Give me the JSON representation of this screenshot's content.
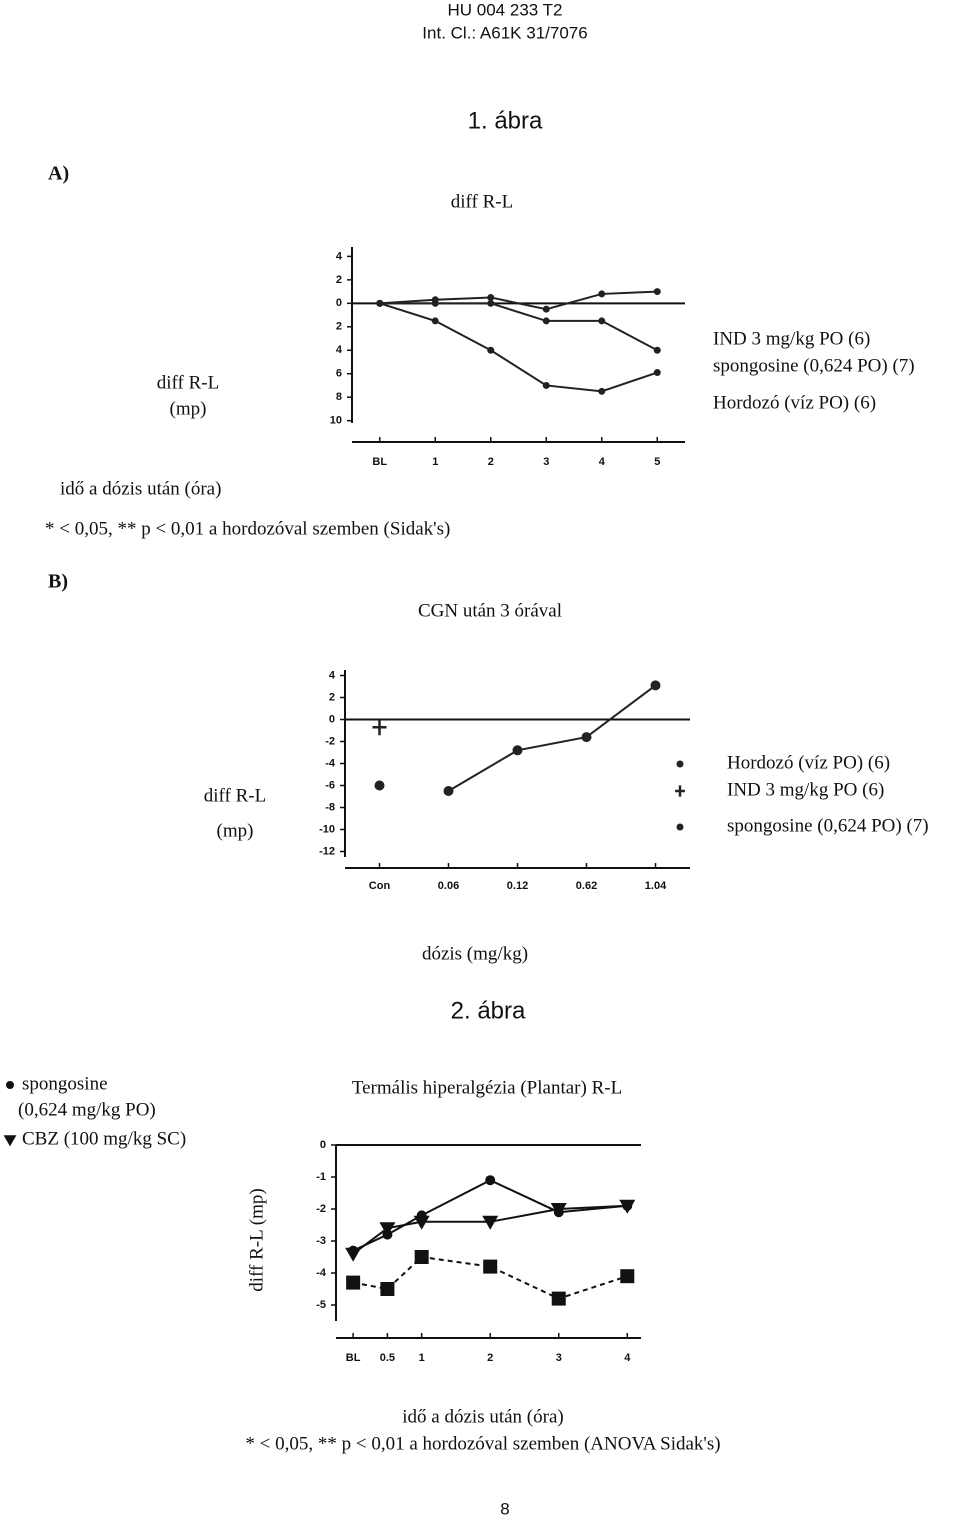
{
  "header": {
    "patent": "HU 004 233 T2",
    "class": "Int. Cl.: A61K 31/7076"
  },
  "page_number": "8",
  "chart_data": [
    {
      "type": "line",
      "figure": "1. ábra",
      "panel": "A)",
      "title": "diff R-L",
      "ylabel": [
        "diff R-L",
        "(mp)"
      ],
      "xlabel": "idő a dózis után (óra)",
      "note": "* < 0,05, ** p < 0,01 a hordozóval szemben (Sidak's)",
      "categories": [
        "BL",
        "1",
        "2",
        "3",
        "4",
        "5"
      ],
      "ylim": [
        -10.2,
        4.8
      ],
      "yticks": [
        4,
        2,
        0,
        {
          "value": -2,
          "label": "2"
        },
        {
          "value": -4,
          "label": "4"
        },
        {
          "value": -6,
          "label": "6"
        },
        {
          "value": -8,
          "label": "8"
        },
        {
          "value": -10,
          "label": "10"
        }
      ],
      "series": [
        {
          "name": "IND 3 mg/kg PO (6)",
          "color": "#222",
          "values": [
            0,
            -1.5,
            -4,
            -7,
            -7.5,
            -5.9
          ]
        },
        {
          "name": "spongosine (0,624 PO) (7)",
          "color": "#222",
          "values": [
            0,
            0,
            0,
            -1.5,
            -1.5,
            -4
          ]
        },
        {
          "name": "Hordozó (víz PO) (6)",
          "color": "#222",
          "values": [
            0,
            0.3,
            0.5,
            -0.5,
            0.8,
            1
          ]
        }
      ]
    },
    {
      "type": "line",
      "panel": "B)",
      "title": "CGN után 3 órával",
      "ylabel": [
        "diff R-L",
        "(mp)"
      ],
      "xlabel": "dózis (mg/kg)",
      "categories": [
        "Con",
        "0.06",
        "0.12",
        "0.62",
        "1.04"
      ],
      "ylim": [
        -12.5,
        4.5
      ],
      "yticks": [
        4,
        2,
        0,
        -2,
        -4,
        -6,
        -8,
        -10,
        -12
      ],
      "series": [
        {
          "name": "Hordozó (víz PO) (6)",
          "color": "#222",
          "marker": "circle",
          "values": [
            -6,
            null,
            null,
            null,
            null
          ]
        },
        {
          "name": "IND 3 mg/kg PO (6)",
          "color": "#222",
          "marker": "cross",
          "values": [
            -0.7,
            null,
            null,
            null,
            null
          ]
        },
        {
          "name": "spongosine (0,624 PO) (7)",
          "color": "#222",
          "marker": "circle",
          "values": [
            null,
            -6.5,
            -2.8,
            -1.6,
            3.1
          ]
        }
      ]
    },
    {
      "type": "scatter-line",
      "figure": "2. ábra",
      "title": "Termális hiperalgézia (Plantar) R-L",
      "ylabel": "diff R-L (mp)",
      "xlabel": "idő a dózis után (óra)",
      "note": "* < 0,05, ** p < 0,01 a hordozóval szemben (ANOVA Sidak's)",
      "x": [
        0,
        0.5,
        1,
        2,
        3,
        4
      ],
      "xlim": [
        -0.25,
        4.2
      ],
      "xticks": [
        {
          "value": 0,
          "label": "BL"
        },
        0.5,
        1,
        2,
        3,
        4
      ],
      "ylim": [
        -5.5,
        0
      ],
      "yticks": [
        0,
        -1,
        -2,
        -3,
        -4,
        -5
      ],
      "series": [
        {
          "name": "spongosine",
          "detail": "(0,624 mg/kg PO)",
          "color": "#111",
          "marker": "circle",
          "values": [
            -3.3,
            -2.8,
            -2.2,
            -1.1,
            -2.1,
            -1.9
          ]
        },
        {
          "name": "CBZ (100 mg/kg SC)",
          "color": "#111",
          "marker": "triangle",
          "values": [
            -3.4,
            -2.6,
            -2.4,
            -2.4,
            -2.0,
            -1.9
          ]
        },
        {
          "color": "#111",
          "marker": "square",
          "dash": true,
          "values": [
            -4.3,
            -4.5,
            -3.5,
            -3.8,
            -4.8,
            -4.1
          ]
        }
      ]
    }
  ]
}
